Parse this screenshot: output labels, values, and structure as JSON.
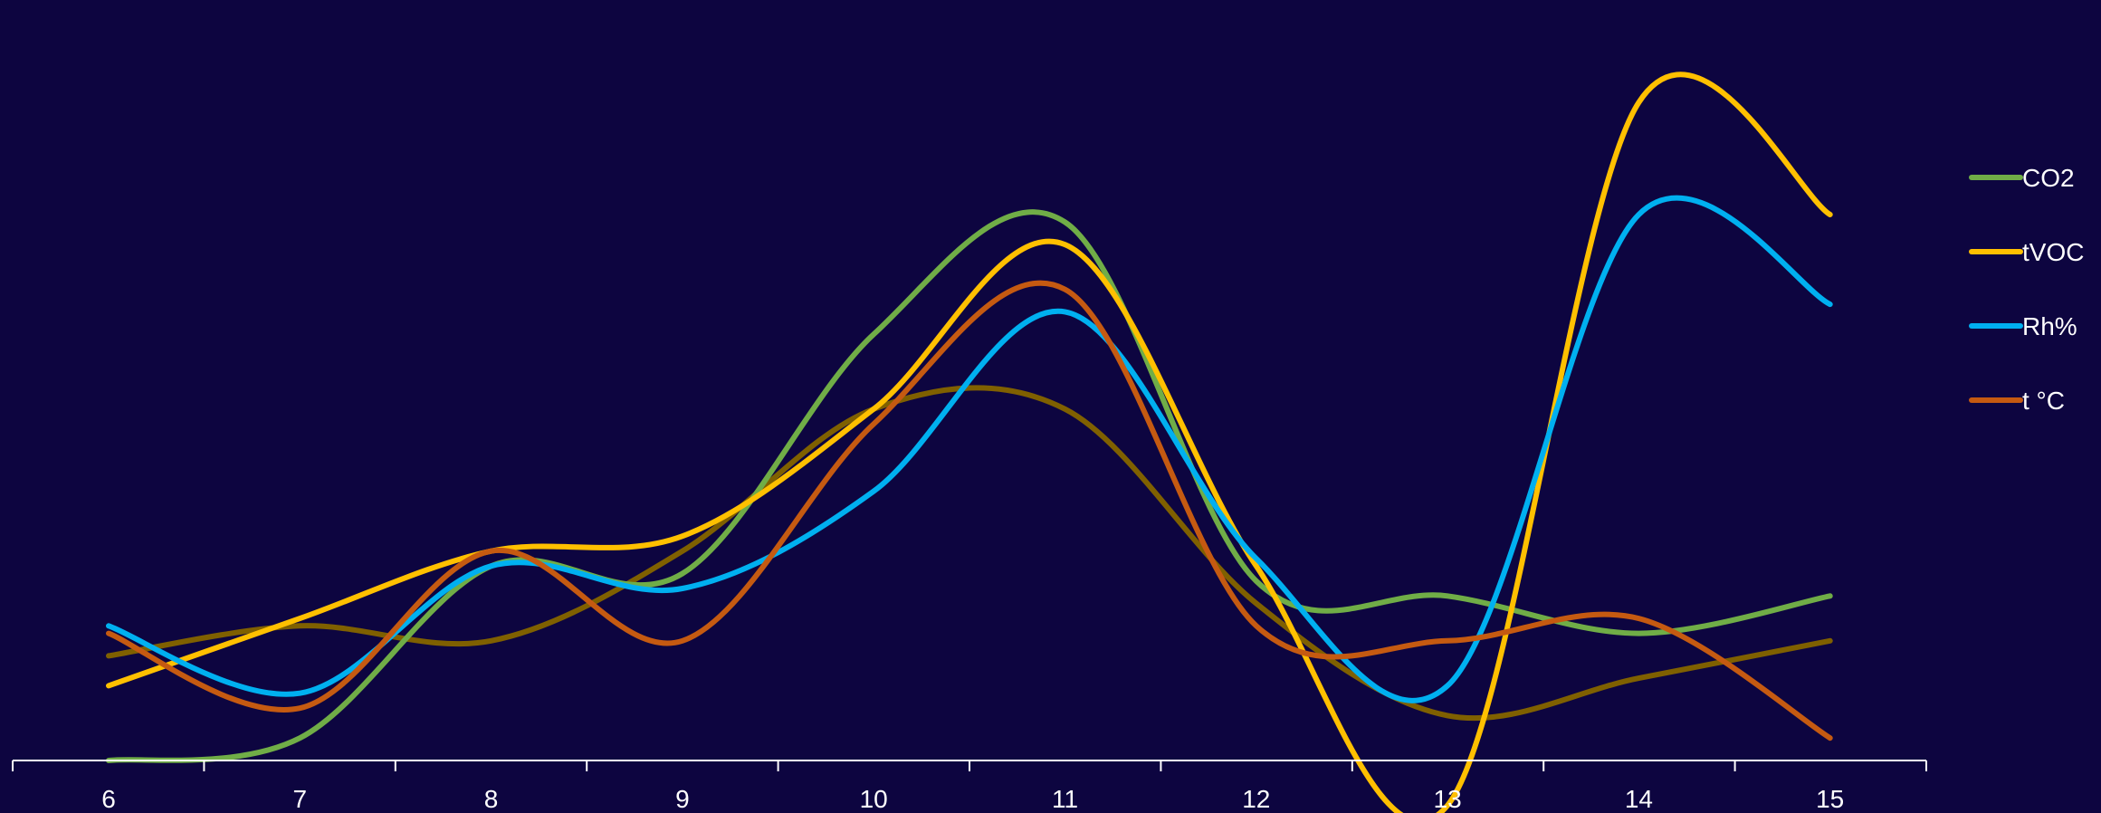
{
  "chart_data": {
    "type": "line",
    "smooth": true,
    "x": [
      "6",
      "7",
      "8",
      "9",
      "10",
      "11",
      "12",
      "13",
      "14",
      "15"
    ],
    "ylim": [
      0,
      100
    ],
    "grid": false,
    "legend_position": "right",
    "series": [
      {
        "name": "CO2",
        "color": "#70ad47",
        "values": [
          0,
          3,
          26,
          25,
          57,
          72,
          24,
          22,
          17,
          22
        ],
        "in_legend": true
      },
      {
        "name": "tVOC",
        "color": "#ffc000",
        "values": [
          10,
          19,
          28,
          30,
          47,
          69,
          26,
          -6,
          88,
          73
        ],
        "in_legend": true
      },
      {
        "name": "Rh%",
        "color": "#00b0f0",
        "values": [
          18,
          9,
          26,
          23,
          36,
          60,
          27,
          10,
          73,
          61
        ],
        "in_legend": true
      },
      {
        "name": "t °C",
        "color": "#c55a11",
        "values": [
          17,
          7,
          28,
          16,
          45,
          63,
          18,
          16,
          19,
          3
        ],
        "in_legend": true
      },
      {
        "name": "",
        "color": "#7f6000",
        "values": [
          14,
          18,
          16,
          28,
          47,
          47,
          21,
          6,
          11,
          16
        ],
        "in_legend": false
      }
    ]
  }
}
